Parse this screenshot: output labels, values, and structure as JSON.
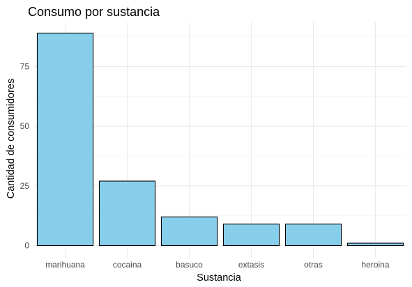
{
  "chart_data": {
    "type": "bar",
    "title": "Consumo por sustancia",
    "xlabel": "Sustancia",
    "ylabel": "Cantidad de consumidores",
    "categories": [
      "marihuana",
      "cocaina",
      "basuco",
      "extasis",
      "otras",
      "heroina"
    ],
    "values": [
      89,
      27,
      12,
      9,
      9,
      1
    ],
    "yticks": [
      0,
      25,
      50,
      75
    ],
    "ylim": [
      0,
      93.5
    ],
    "grid": true,
    "legend": "none"
  },
  "colors": {
    "bar_fill": "#87CEEB",
    "bar_stroke": "#000000",
    "grid_major": "#ebebeb",
    "grid_minor": "#f5f5f5",
    "tick_text": "#4d4d4d",
    "background": "#ffffff"
  }
}
